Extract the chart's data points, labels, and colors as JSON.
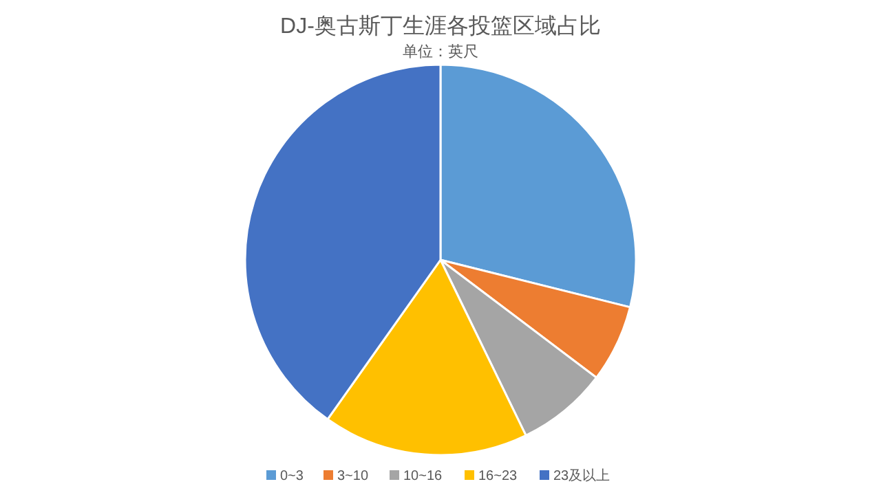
{
  "chart_data": {
    "type": "pie",
    "title": "DJ-奥古斯丁生涯各投篮区域占比",
    "subtitle": "单位：英尺",
    "categories": [
      "0~3",
      "3~10",
      "10~16",
      "16~23",
      "23及以上"
    ],
    "values": [
      28.9,
      6.4,
      7.5,
      17,
      40.2
    ],
    "colors": [
      "#5b9bd5",
      "#ed7d31",
      "#a5a5a5",
      "#ffc000",
      "#4472c4"
    ],
    "legend": "bottom"
  }
}
